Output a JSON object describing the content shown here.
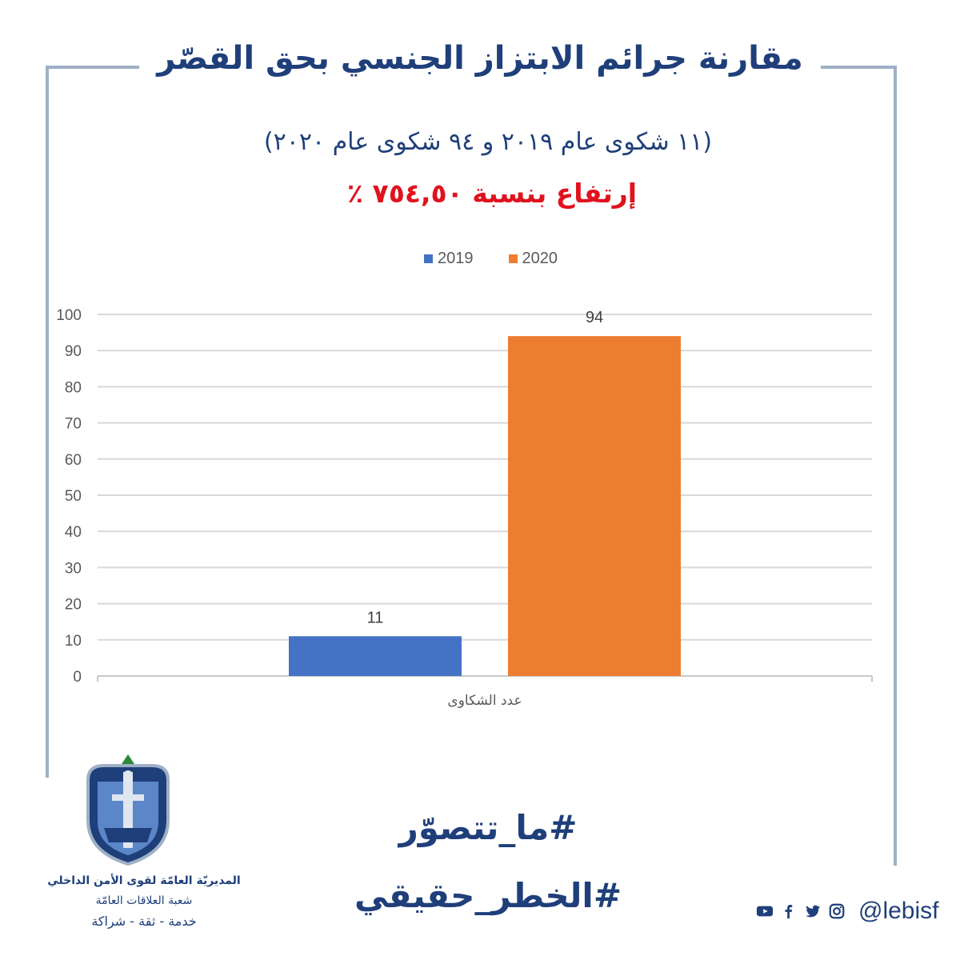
{
  "title": "مقارنة جرائم الابتزاز الجنسي بحق القصّر",
  "subtitle": "(١١ شكوى عام ٢٠١٩ و ٩٤ شكوى عام ٢٠٢٠)",
  "highlight": "إرتفاع بنسبة ٧٥٤,٥٠ ٪",
  "chart_data": {
    "type": "bar",
    "categories": [
      "عدد الشكاوى"
    ],
    "series": [
      {
        "name": "2019",
        "values": [
          11
        ],
        "color": "#4472c4"
      },
      {
        "name": "2020",
        "values": [
          94
        ],
        "color": "#ed7d31"
      }
    ],
    "ylim": [
      0,
      100
    ],
    "yticks": [
      0,
      10,
      20,
      30,
      40,
      50,
      60,
      70,
      80,
      90,
      100
    ],
    "data_labels": [
      "11",
      "94"
    ],
    "legend": "top-center",
    "grid": true
  },
  "hashtags": [
    "#ما_تتصوّر",
    "#الخطر_حقيقي"
  ],
  "organization": {
    "name": "المديريّة العامّة لقوى الأمن الداخلي",
    "department": "شعبة العلاقات العامّة",
    "motto": "خدمة - ثقة - شراكة"
  },
  "social": {
    "handle": "@lebisf",
    "icons": [
      "youtube-icon",
      "facebook-icon",
      "twitter-icon",
      "instagram-icon"
    ]
  },
  "colors": {
    "primary": "#1f3f7a",
    "accent": "#e0121e",
    "frame": "#9fb0c6"
  }
}
